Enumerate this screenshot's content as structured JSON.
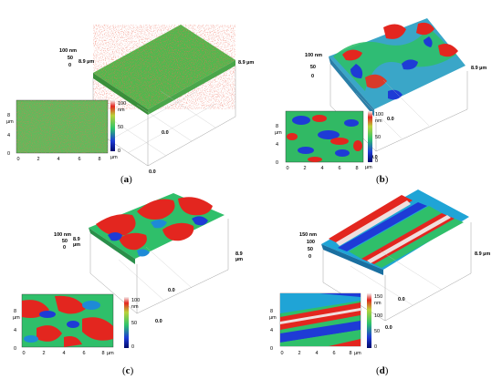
{
  "figure": {
    "panels": [
      {
        "id": "a",
        "caption": "(a)",
        "z_max_label": "100 nm",
        "z_mid_label": "50",
        "z_min_label": "0",
        "y_end_label": "8.9 µm",
        "x_end_label": "8.9 µm",
        "origin_label": "0.0",
        "origin_label2": "0.0",
        "map_axis_unit": "µm",
        "map_x_ticks": [
          "0",
          "2",
          "4",
          "6",
          "8"
        ],
        "map_y_ticks": [
          "8",
          "4",
          "0"
        ],
        "colorbar_ticks": [
          "100",
          "nm",
          "50",
          "0"
        ]
      },
      {
        "id": "b",
        "caption": "(b)",
        "z_max_label": "100 nm",
        "z_mid_label": "50",
        "z_min_label": "0",
        "x_end_label": "8.9 µm",
        "origin_label": "0.0",
        "origin_label2": "0.0",
        "map_axis_unit": "µm",
        "map_x_ticks": [
          "0",
          "2",
          "4",
          "6",
          "8"
        ],
        "map_y_ticks": [
          "8",
          "4",
          "0"
        ],
        "colorbar_ticks": [
          "100",
          "nm",
          "50",
          "0"
        ]
      },
      {
        "id": "c",
        "caption": "(c)",
        "z_max_label": "100 nm",
        "z_mid_label": "50",
        "z_min_label": "0",
        "y_end_label": "8.9",
        "y_end_unit": "µm",
        "x_end_label": "8.9",
        "x_end_unit": "µm",
        "origin_label": "0.0",
        "origin_label2": "0.0",
        "map_axis_unit": "µm",
        "map_x_ticks": [
          "0",
          "2",
          "4",
          "6",
          "8"
        ],
        "map_y_ticks": [
          "8",
          "4",
          "0"
        ],
        "colorbar_ticks": [
          "100",
          "nm",
          "50",
          "0"
        ]
      },
      {
        "id": "d",
        "caption": "(d)",
        "z_max_label": "150 nm",
        "z_l2": "100",
        "z_mid_label": "50",
        "z_min_label": "0",
        "x_end_label": "8.9 µm",
        "origin_label": "0.0",
        "origin_label2": "0.0",
        "map_axis_unit": "µm",
        "map_x_ticks": [
          "0",
          "2",
          "4",
          "6",
          "8"
        ],
        "map_y_ticks": [
          "8",
          "4",
          "0"
        ],
        "colorbar_ticks": [
          "150",
          "nm",
          "100",
          "50",
          "0"
        ]
      }
    ],
    "colors": {
      "low": "#1e2fbf",
      "mid_low": "#1fa4d6",
      "mid": "#2ec46b",
      "mid_high": "#88cc44",
      "high": "#e3261f",
      "peak": "#f0e0e0"
    }
  }
}
